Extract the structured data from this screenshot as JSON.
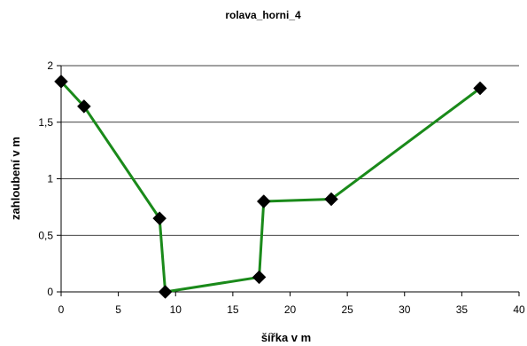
{
  "chart_data": {
    "type": "line",
    "title": "rolava_horni_4",
    "xlabel": "šířka v m",
    "ylabel": "zahloubení v m",
    "xlim": [
      0,
      40
    ],
    "ylim": [
      0,
      2
    ],
    "x_ticks": [
      0,
      5,
      10,
      15,
      20,
      25,
      30,
      35,
      40
    ],
    "x_tick_labels": [
      "0",
      "5",
      "10",
      "15",
      "20",
      "25",
      "30",
      "35",
      "40"
    ],
    "y_ticks": [
      0,
      0.5,
      1,
      1.5,
      2
    ],
    "y_tick_labels": [
      "0",
      "0,5",
      "1",
      "1,5",
      "2"
    ],
    "grid": "horizontal",
    "legend": "none",
    "series": [
      {
        "x": [
          0,
          2,
          8.6,
          9.1,
          17.3,
          17.7,
          23.6,
          36.6
        ],
        "y": [
          1.86,
          1.64,
          0.65,
          0.0,
          0.13,
          0.8,
          0.82,
          1.8
        ],
        "line_color": "#1a8a1a",
        "marker": "diamond",
        "marker_color": "#000000"
      }
    ]
  }
}
